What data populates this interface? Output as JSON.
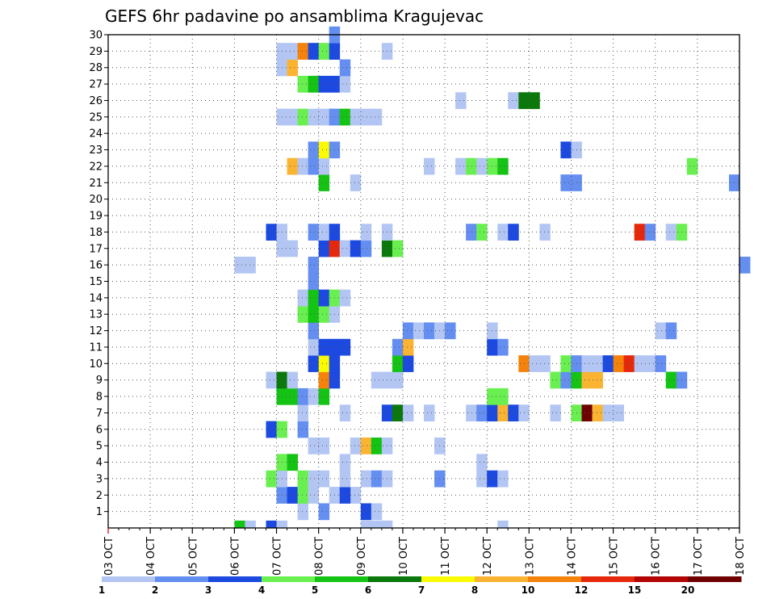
{
  "chart_data": {
    "type": "heatmap",
    "title": "GEFS 6hr padavine po ansamblima Kragujevac",
    "x_ticks": [
      "03 OCT",
      "04 OCT",
      "05 OCT",
      "06 OCT",
      "07 OCT",
      "08 OCT",
      "09 OCT",
      "10 OCT",
      "11 OCT",
      "12 OCT",
      "13 OCT",
      "14 OCT",
      "15 OCT",
      "16 OCT",
      "17 OCT",
      "18 OCT"
    ],
    "y_ticks": [
      "1",
      "2",
      "3",
      "4",
      "5",
      "6",
      "7",
      "8",
      "9",
      "10",
      "11",
      "12",
      "13",
      "14",
      "15",
      "16",
      "17",
      "18",
      "19",
      "20",
      "21",
      "22",
      "23",
      "24",
      "25",
      "26",
      "27",
      "28",
      "29",
      "30"
    ],
    "xlim": [
      "03 OCT 00Z",
      "18 OCT 00Z"
    ],
    "ylim": [
      0,
      30
    ],
    "x_step_hours": 6,
    "grid": true,
    "colorbar": {
      "labels": [
        "1",
        "2",
        "3",
        "4",
        "5",
        "6",
        "7",
        "8",
        "10",
        "12",
        "15",
        "20"
      ],
      "colors": [
        "#b3c6f3",
        "#648ef0",
        "#1c49e0",
        "#69f050",
        "#14c314",
        "#0b780b",
        "#fafa00",
        "#fab432",
        "#f5820a",
        "#e6280a",
        "#b40505",
        "#6e0000"
      ]
    },
    "cells": [
      [
        1,
        "07 OCT 12Z",
        0
      ],
      [
        1,
        "08 OCT 00Z",
        1
      ],
      [
        1,
        "09 OCT 00Z",
        2
      ],
      [
        1,
        "09 OCT 06Z",
        0
      ],
      [
        2,
        "07 OCT 00Z",
        1
      ],
      [
        2,
        "07 OCT 06Z",
        2
      ],
      [
        2,
        "07 OCT 12Z",
        3
      ],
      [
        2,
        "07 OCT 18Z",
        0
      ],
      [
        2,
        "08 OCT 18Z",
        0
      ],
      [
        2,
        "08 OCT 06Z",
        0
      ],
      [
        2,
        "08 OCT 12Z",
        2
      ],
      [
        3,
        "06 OCT 18Z",
        3
      ],
      [
        3,
        "07 OCT 00Z",
        0
      ],
      [
        3,
        "07 OCT 12Z",
        3
      ],
      [
        3,
        "07 OCT 18Z",
        0
      ],
      [
        3,
        "08 OCT 00Z",
        0
      ],
      [
        3,
        "08 OCT 12Z",
        0
      ],
      [
        3,
        "09 OCT 00Z",
        0
      ],
      [
        3,
        "09 OCT 06Z",
        1
      ],
      [
        3,
        "09 OCT 12Z",
        0
      ],
      [
        3,
        "10 OCT 18Z",
        1
      ],
      [
        3,
        "11 OCT 18Z",
        0
      ],
      [
        3,
        "12 OCT 00Z",
        2
      ],
      [
        3,
        "12 OCT 06Z",
        0
      ],
      [
        4,
        "07 OCT 00Z",
        3
      ],
      [
        4,
        "07 OCT 06Z",
        4
      ],
      [
        4,
        "08 OCT 12Z",
        0
      ],
      [
        4,
        "11 OCT 18Z",
        0
      ],
      [
        5,
        "07 OCT 18Z",
        0
      ],
      [
        5,
        "08 OCT 00Z",
        0
      ],
      [
        5,
        "08 OCT 18Z",
        0
      ],
      [
        5,
        "09 OCT 00Z",
        7
      ],
      [
        5,
        "09 OCT 06Z",
        4
      ],
      [
        5,
        "09 OCT 12Z",
        0
      ],
      [
        5,
        "10 OCT 18Z",
        0
      ],
      [
        6,
        "06 OCT 18Z",
        2
      ],
      [
        6,
        "07 OCT 00Z",
        3
      ],
      [
        6,
        "07 OCT 12Z",
        1
      ],
      [
        7,
        "07 OCT 12Z",
        0
      ],
      [
        7,
        "08 OCT 12Z",
        0
      ],
      [
        7,
        "09 OCT 12Z",
        2
      ],
      [
        7,
        "09 OCT 18Z",
        5
      ],
      [
        7,
        "10 OCT 00Z",
        0
      ],
      [
        7,
        "10 OCT 12Z",
        0
      ],
      [
        7,
        "11 OCT 12Z",
        0
      ],
      [
        7,
        "11 OCT 18Z",
        1
      ],
      [
        7,
        "12 OCT 00Z",
        2
      ],
      [
        7,
        "12 OCT 06Z",
        7
      ],
      [
        7,
        "12 OCT 12Z",
        2
      ],
      [
        7,
        "12 OCT 18Z",
        0
      ],
      [
        7,
        "13 OCT 12Z",
        0
      ],
      [
        7,
        "14 OCT 00Z",
        3
      ],
      [
        7,
        "14 OCT 06Z",
        11
      ],
      [
        7,
        "14 OCT 12Z",
        7
      ],
      [
        7,
        "14 OCT 18Z",
        0
      ],
      [
        7,
        "15 OCT 00Z",
        0
      ],
      [
        8,
        "07 OCT 00Z",
        4
      ],
      [
        8,
        "07 OCT 06Z",
        4
      ],
      [
        8,
        "07 OCT 12Z",
        1
      ],
      [
        8,
        "07 OCT 18Z",
        0
      ],
      [
        8,
        "08 OCT 00Z",
        4
      ],
      [
        8,
        "12 OCT 00Z",
        3
      ],
      [
        8,
        "12 OCT 06Z",
        3
      ],
      [
        9,
        "06 OCT 18Z",
        0
      ],
      [
        9,
        "07 OCT 00Z",
        5
      ],
      [
        9,
        "07 OCT 06Z",
        0
      ],
      [
        9,
        "08 OCT 00Z",
        8
      ],
      [
        9,
        "08 OCT 06Z",
        2
      ],
      [
        9,
        "09 OCT 06Z",
        0
      ],
      [
        9,
        "09 OCT 12Z",
        0
      ],
      [
        9,
        "09 OCT 18Z",
        0
      ],
      [
        9,
        "13 OCT 12Z",
        3
      ],
      [
        9,
        "13 OCT 18Z",
        1
      ],
      [
        9,
        "14 OCT 00Z",
        4
      ],
      [
        9,
        "14 OCT 06Z",
        7
      ],
      [
        9,
        "14 OCT 12Z",
        7
      ],
      [
        9,
        "16 OCT 06Z",
        4
      ],
      [
        9,
        "16 OCT 12Z",
        1
      ],
      [
        10,
        "07 OCT 18Z",
        2
      ],
      [
        10,
        "08 OCT 00Z",
        6
      ],
      [
        10,
        "08 OCT 06Z",
        2
      ],
      [
        10,
        "09 OCT 18Z",
        4
      ],
      [
        10,
        "10 OCT 00Z",
        2
      ],
      [
        10,
        "12 OCT 18Z",
        8
      ],
      [
        10,
        "13 OCT 00Z",
        0
      ],
      [
        10,
        "13 OCT 06Z",
        0
      ],
      [
        10,
        "13 OCT 18Z",
        3
      ],
      [
        10,
        "14 OCT 00Z",
        1
      ],
      [
        10,
        "14 OCT 06Z",
        0
      ],
      [
        10,
        "14 OCT 12Z",
        0
      ],
      [
        10,
        "14 OCT 18Z",
        2
      ],
      [
        10,
        "15 OCT 00Z",
        8
      ],
      [
        10,
        "15 OCT 06Z",
        9
      ],
      [
        10,
        "15 OCT 12Z",
        0
      ],
      [
        10,
        "15 OCT 18Z",
        0
      ],
      [
        10,
        "16 OCT 00Z",
        1
      ],
      [
        11,
        "07 OCT 18Z",
        0
      ],
      [
        11,
        "08 OCT 00Z",
        2
      ],
      [
        11,
        "08 OCT 06Z",
        2
      ],
      [
        11,
        "08 OCT 12Z",
        2
      ],
      [
        11,
        "09 OCT 18Z",
        1
      ],
      [
        11,
        "10 OCT 00Z",
        7
      ],
      [
        11,
        "12 OCT 00Z",
        2
      ],
      [
        11,
        "12 OCT 06Z",
        1
      ],
      [
        12,
        "07 OCT 18Z",
        1
      ],
      [
        12,
        "10 OCT 00Z",
        1
      ],
      [
        12,
        "10 OCT 06Z",
        0
      ],
      [
        12,
        "10 OCT 12Z",
        1
      ],
      [
        12,
        "10 OCT 18Z",
        0
      ],
      [
        12,
        "11 OCT 00Z",
        1
      ],
      [
        12,
        "12 OCT 00Z",
        0
      ],
      [
        12,
        "16 OCT 00Z",
        0
      ],
      [
        12,
        "16 OCT 06Z",
        1
      ],
      [
        13,
        "07 OCT 12Z",
        3
      ],
      [
        13,
        "07 OCT 18Z",
        4
      ],
      [
        13,
        "08 OCT 00Z",
        3
      ],
      [
        13,
        "08 OCT 06Z",
        0
      ],
      [
        14,
        "07 OCT 12Z",
        0
      ],
      [
        14,
        "07 OCT 18Z",
        4
      ],
      [
        14,
        "08 OCT 00Z",
        2
      ],
      [
        14,
        "08 OCT 06Z",
        3
      ],
      [
        14,
        "08 OCT 12Z",
        0
      ],
      [
        15,
        "07 OCT 18Z",
        1
      ],
      [
        16,
        "06 OCT 00Z",
        0
      ],
      [
        16,
        "06 OCT 06Z",
        0
      ],
      [
        16,
        "07 OCT 18Z",
        1
      ],
      [
        16,
        "18 OCT 00Z",
        1
      ],
      [
        17,
        "07 OCT 00Z",
        0
      ],
      [
        17,
        "07 OCT 06Z",
        0
      ],
      [
        17,
        "08 OCT 00Z",
        2
      ],
      [
        17,
        "08 OCT 06Z",
        9
      ],
      [
        17,
        "08 OCT 12Z",
        0
      ],
      [
        17,
        "08 OCT 18Z",
        2
      ],
      [
        17,
        "09 OCT 00Z",
        1
      ],
      [
        17,
        "09 OCT 12Z",
        5
      ],
      [
        17,
        "09 OCT 18Z",
        3
      ],
      [
        18,
        "06 OCT 18Z",
        2
      ],
      [
        18,
        "07 OCT 00Z",
        0
      ],
      [
        18,
        "07 OCT 18Z",
        1
      ],
      [
        18,
        "08 OCT 00Z",
        0
      ],
      [
        18,
        "08 OCT 06Z",
        2
      ],
      [
        18,
        "09 OCT 00Z",
        0
      ],
      [
        18,
        "09 OCT 12Z",
        0
      ],
      [
        18,
        "11 OCT 12Z",
        1
      ],
      [
        18,
        "11 OCT 18Z",
        3
      ],
      [
        18,
        "12 OCT 06Z",
        0
      ],
      [
        18,
        "12 OCT 12Z",
        2
      ],
      [
        18,
        "13 OCT 06Z",
        0
      ],
      [
        18,
        "15 OCT 12Z",
        9
      ],
      [
        18,
        "15 OCT 18Z",
        1
      ],
      [
        18,
        "16 OCT 06Z",
        0
      ],
      [
        18,
        "16 OCT 12Z",
        3
      ],
      [
        21,
        "08 OCT 00Z",
        4
      ],
      [
        21,
        "08 OCT 18Z",
        0
      ],
      [
        21,
        "13 OCT 18Z",
        1
      ],
      [
        21,
        "14 OCT 00Z",
        1
      ],
      [
        21,
        "17 OCT 18Z",
        1
      ],
      [
        22,
        "07 OCT 06Z",
        7
      ],
      [
        22,
        "07 OCT 12Z",
        0
      ],
      [
        22,
        "07 OCT 18Z",
        1
      ],
      [
        22,
        "08 OCT 00Z",
        0
      ],
      [
        22,
        "10 OCT 12Z",
        0
      ],
      [
        22,
        "11 OCT 06Z",
        0
      ],
      [
        22,
        "11 OCT 12Z",
        3
      ],
      [
        22,
        "11 OCT 18Z",
        0
      ],
      [
        22,
        "12 OCT 00Z",
        3
      ],
      [
        22,
        "12 OCT 06Z",
        4
      ],
      [
        22,
        "16 OCT 18Z",
        3
      ],
      [
        23,
        "07 OCT 18Z",
        1
      ],
      [
        23,
        "08 OCT 00Z",
        6
      ],
      [
        23,
        "08 OCT 06Z",
        1
      ],
      [
        23,
        "13 OCT 18Z",
        2
      ],
      [
        23,
        "14 OCT 00Z",
        0
      ],
      [
        25,
        "07 OCT 00Z",
        0
      ],
      [
        25,
        "07 OCT 06Z",
        0
      ],
      [
        25,
        "07 OCT 12Z",
        3
      ],
      [
        25,
        "07 OCT 18Z",
        0
      ],
      [
        25,
        "08 OCT 00Z",
        0
      ],
      [
        25,
        "08 OCT 06Z",
        1
      ],
      [
        25,
        "08 OCT 12Z",
        4
      ],
      [
        25,
        "08 OCT 18Z",
        0
      ],
      [
        25,
        "09 OCT 00Z",
        0
      ],
      [
        25,
        "09 OCT 06Z",
        0
      ],
      [
        26,
        "11 OCT 06Z",
        0
      ],
      [
        26,
        "12 OCT 12Z",
        0
      ],
      [
        26,
        "12 OCT 18Z",
        5
      ],
      [
        26,
        "13 OCT 00Z",
        5
      ],
      [
        27,
        "07 OCT 12Z",
        3
      ],
      [
        27,
        "07 OCT 18Z",
        4
      ],
      [
        27,
        "08 OCT 00Z",
        2
      ],
      [
        27,
        "08 OCT 06Z",
        2
      ],
      [
        27,
        "08 OCT 12Z",
        0
      ],
      [
        28,
        "07 OCT 00Z",
        0
      ],
      [
        28,
        "07 OCT 06Z",
        7
      ],
      [
        28,
        "08 OCT 12Z",
        1
      ],
      [
        29,
        "07 OCT 00Z",
        0
      ],
      [
        29,
        "07 OCT 06Z",
        0
      ],
      [
        29,
        "07 OCT 12Z",
        8
      ],
      [
        29,
        "07 OCT 18Z",
        2
      ],
      [
        29,
        "08 OCT 00Z",
        3
      ],
      [
        29,
        "08 OCT 06Z",
        2
      ],
      [
        29,
        "09 OCT 12Z",
        0
      ],
      [
        30,
        "08 OCT 06Z",
        1
      ],
      [
        0,
        "06 OCT 00Z",
        4
      ],
      [
        0,
        "06 OCT 06Z",
        0
      ],
      [
        0,
        "06 OCT 18Z",
        2
      ],
      [
        0,
        "07 OCT 00Z",
        0
      ],
      [
        0,
        "09 OCT 00Z",
        0
      ],
      [
        0,
        "09 OCT 06Z",
        0
      ],
      [
        0,
        "09 OCT 12Z",
        0
      ],
      [
        0,
        "12 OCT 06Z",
        0
      ]
    ]
  }
}
